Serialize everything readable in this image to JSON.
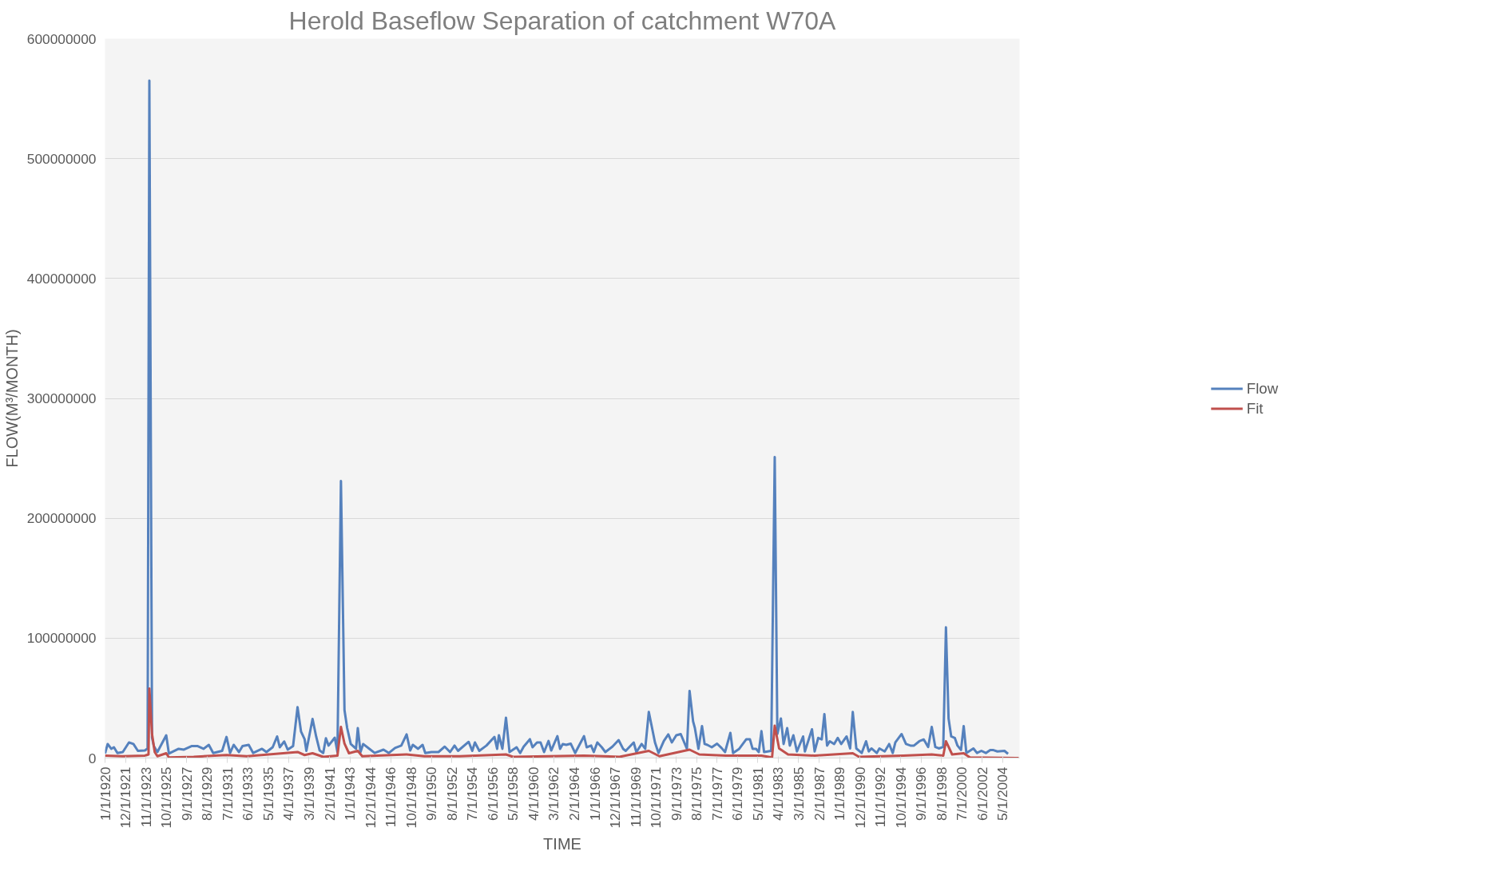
{
  "chart_data": {
    "type": "line",
    "title": "Herold Baseflow Separation of catchment W70A",
    "xlabel": "TIME",
    "ylabel": "FLOW(M³/MONTH)",
    "xlim": [
      "1920-01",
      "2005-12"
    ],
    "ylim": [
      0,
      600000000
    ],
    "yticks": [
      0,
      100000000,
      200000000,
      300000000,
      400000000,
      500000000,
      600000000
    ],
    "xticks": [
      {
        "value": "1920-01-01",
        "label": "1/1/1920"
      },
      {
        "value": "1921-12-01",
        "label": "12/1/1921"
      },
      {
        "value": "1923-11-01",
        "label": "11/1/1923"
      },
      {
        "value": "1925-10-01",
        "label": "10/1/1925"
      },
      {
        "value": "1927-09-01",
        "label": "9/1/1927"
      },
      {
        "value": "1929-08-01",
        "label": "8/1/1929"
      },
      {
        "value": "1931-07-01",
        "label": "7/1/1931"
      },
      {
        "value": "1933-06-01",
        "label": "6/1/1933"
      },
      {
        "value": "1935-05-01",
        "label": "5/1/1935"
      },
      {
        "value": "1937-04-01",
        "label": "4/1/1937"
      },
      {
        "value": "1939-03-01",
        "label": "3/1/1939"
      },
      {
        "value": "1941-02-01",
        "label": "2/1/1941"
      },
      {
        "value": "1943-01-01",
        "label": "1/1/1943"
      },
      {
        "value": "1944-12-01",
        "label": "12/1/1944"
      },
      {
        "value": "1946-11-01",
        "label": "11/1/1946"
      },
      {
        "value": "1948-10-01",
        "label": "10/1/1948"
      },
      {
        "value": "1950-09-01",
        "label": "9/1/1950"
      },
      {
        "value": "1952-08-01",
        "label": "8/1/1952"
      },
      {
        "value": "1954-07-01",
        "label": "7/1/1954"
      },
      {
        "value": "1956-06-01",
        "label": "6/1/1956"
      },
      {
        "value": "1958-05-01",
        "label": "5/1/1958"
      },
      {
        "value": "1960-04-01",
        "label": "4/1/1960"
      },
      {
        "value": "1962-03-01",
        "label": "3/1/1962"
      },
      {
        "value": "1964-02-01",
        "label": "2/1/1964"
      },
      {
        "value": "1966-01-01",
        "label": "1/1/1966"
      },
      {
        "value": "1967-12-01",
        "label": "12/1/1967"
      },
      {
        "value": "1969-11-01",
        "label": "11/1/1969"
      },
      {
        "value": "1971-10-01",
        "label": "10/1/1971"
      },
      {
        "value": "1973-09-01",
        "label": "9/1/1973"
      },
      {
        "value": "1975-08-01",
        "label": "8/1/1975"
      },
      {
        "value": "1977-07-01",
        "label": "7/1/1977"
      },
      {
        "value": "1979-06-01",
        "label": "6/1/1979"
      },
      {
        "value": "1981-05-01",
        "label": "5/1/1981"
      },
      {
        "value": "1983-04-01",
        "label": "4/1/1983"
      },
      {
        "value": "1985-03-01",
        "label": "3/1/1985"
      },
      {
        "value": "1987-02-01",
        "label": "2/1/1987"
      },
      {
        "value": "1989-01-01",
        "label": "1/1/1989"
      },
      {
        "value": "1990-12-01",
        "label": "12/1/1990"
      },
      {
        "value": "1992-11-01",
        "label": "11/1/1992"
      },
      {
        "value": "1994-10-01",
        "label": "10/1/1994"
      },
      {
        "value": "1996-09-01",
        "label": "9/1/1996"
      },
      {
        "value": "1998-08-01",
        "label": "8/1/1998"
      },
      {
        "value": "2000-07-01",
        "label": "7/1/2000"
      },
      {
        "value": "2002-06-01",
        "label": "6/1/2002"
      },
      {
        "value": "2004-05-01",
        "label": "5/1/2004"
      }
    ],
    "grid": "y",
    "legend": "right",
    "series": [
      {
        "name": "Flow",
        "color": "#5581bd",
        "x": [
          "1920-01",
          "1920-04",
          "1920-08",
          "1920-11",
          "1921-03",
          "1921-09",
          "1922-04",
          "1922-09",
          "1923-02",
          "1923-10",
          "1924-01",
          "1924-03",
          "1924-06",
          "1924-08",
          "1924-12",
          "1925-10",
          "1926-01",
          "1926-12",
          "1927-06",
          "1928-03",
          "1928-09",
          "1929-04",
          "1929-10",
          "1930-03",
          "1931-01",
          "1931-06",
          "1931-10",
          "1932-02",
          "1932-08",
          "1932-12",
          "1933-07",
          "1933-12",
          "1934-10",
          "1935-03",
          "1935-10",
          "1936-03",
          "1936-06",
          "1936-11",
          "1937-03",
          "1937-09",
          "1938-02",
          "1938-06",
          "1938-10",
          "1938-12",
          "1939-07",
          "1939-11",
          "1940-03",
          "1940-07",
          "1940-10",
          "1941-01",
          "1941-08",
          "1941-11",
          "1942-03",
          "1942-07",
          "1942-10",
          "1943-02",
          "1943-08",
          "1943-10",
          "1944-01",
          "1944-04",
          "1944-11",
          "1945-05",
          "1946-03",
          "1946-09",
          "1947-04",
          "1947-11",
          "1948-05",
          "1948-09",
          "1948-12",
          "1949-06",
          "1949-11",
          "1950-02",
          "1950-09",
          "1951-05",
          "1951-12",
          "1952-06",
          "1952-11",
          "1953-03",
          "1954-03",
          "1954-07",
          "1954-10",
          "1955-03",
          "1955-11",
          "1956-08",
          "1956-11",
          "1957-01",
          "1957-05",
          "1957-09",
          "1958-01",
          "1958-09",
          "1959-01",
          "1959-05",
          "1959-12",
          "1960-03",
          "1960-08",
          "1960-12",
          "1961-04",
          "1961-09",
          "1961-12",
          "1962-07",
          "1962-10",
          "1963-01",
          "1963-05",
          "1963-10",
          "1964-03",
          "1965-01",
          "1965-04",
          "1965-09",
          "1965-12",
          "1966-04",
          "1966-09",
          "1967-01",
          "1967-09",
          "1968-04",
          "1968-09",
          "1968-12",
          "1969-09",
          "1969-12",
          "1970-06",
          "1970-10",
          "1971-02",
          "1971-05",
          "1971-09",
          "1972-01",
          "1972-07",
          "1972-12",
          "1973-04",
          "1973-09",
          "1974-02",
          "1974-06",
          "1974-09",
          "1974-12",
          "1975-04",
          "1975-06",
          "1975-10",
          "1976-02",
          "1976-05",
          "1976-08",
          "1977-01",
          "1977-07",
          "1977-12",
          "1978-04",
          "1978-10",
          "1979-01",
          "1979-08",
          "1980-04",
          "1980-08",
          "1980-11",
          "1981-03",
          "1981-06",
          "1981-09",
          "1981-12",
          "1982-08",
          "1982-12",
          "1983-03",
          "1983-07",
          "1983-10",
          "1984-02",
          "1984-05",
          "1984-09",
          "1985-01",
          "1985-08",
          "1985-10",
          "1986-06",
          "1986-09",
          "1987-01",
          "1987-05",
          "1987-08",
          "1987-11",
          "1988-02",
          "1988-07",
          "1988-11",
          "1989-03",
          "1989-09",
          "1990-01",
          "1990-04",
          "1990-08",
          "1991-02",
          "1991-07",
          "1991-10",
          "1992-01",
          "1992-07",
          "1992-10",
          "1993-04",
          "1993-09",
          "1994-01",
          "1994-04",
          "1994-11",
          "1995-04",
          "1995-09",
          "1996-01",
          "1996-07",
          "1996-12",
          "1997-05",
          "1997-09",
          "1998-01",
          "1998-05",
          "1998-10",
          "1999-01",
          "1999-04",
          "1999-07",
          "1999-11",
          "2000-02",
          "2000-06",
          "2000-09",
          "2000-12",
          "2001-08",
          "2001-12",
          "2002-05",
          "2002-10",
          "2003-03",
          "2003-06",
          "2003-11",
          "2004-07",
          "2004-11"
        ],
        "values": [
          3700000,
          11700000,
          7700000,
          9000000,
          4200000,
          5000000,
          13000000,
          11700000,
          6000000,
          6300000,
          8000000,
          565000000,
          17000000,
          10000000,
          5000000,
          19000000,
          3700000,
          7700000,
          7000000,
          10000000,
          10000000,
          7700000,
          11000000,
          4200000,
          6000000,
          17600000,
          4200000,
          11000000,
          5000000,
          10000000,
          11000000,
          4200000,
          7700000,
          5000000,
          9000000,
          18000000,
          9000000,
          13800000,
          7000000,
          10000000,
          42500000,
          22000000,
          15700000,
          6000000,
          32600000,
          18000000,
          6300000,
          4200000,
          16500000,
          10400000,
          17000000,
          5000000,
          231000000,
          40000000,
          25000000,
          11700000,
          7700000,
          25000000,
          5000000,
          11700000,
          7700000,
          4200000,
          7000000,
          4200000,
          8400000,
          10400000,
          19700000,
          6300000,
          11000000,
          7700000,
          11000000,
          4200000,
          5000000,
          5000000,
          9500000,
          5000000,
          10400000,
          6000000,
          13500000,
          6000000,
          13000000,
          6000000,
          10400000,
          17600000,
          7700000,
          19000000,
          7700000,
          33700000,
          5000000,
          9000000,
          4200000,
          9500000,
          15700000,
          9000000,
          13000000,
          13000000,
          5000000,
          14300000,
          6300000,
          18300000,
          7700000,
          11700000,
          11000000,
          12000000,
          4200000,
          18300000,
          9000000,
          10400000,
          5000000,
          13000000,
          9000000,
          5000000,
          9500000,
          15000000,
          7700000,
          6000000,
          13000000,
          5000000,
          11700000,
          7700000,
          38500000,
          27800000,
          13000000,
          4200000,
          14300000,
          19700000,
          13000000,
          19000000,
          20000000,
          13000000,
          7700000,
          56000000,
          30500000,
          25000000,
          7700000,
          26700000,
          11700000,
          11000000,
          9000000,
          12000000,
          8400000,
          5000000,
          21000000,
          4200000,
          7700000,
          15700000,
          15700000,
          7700000,
          7700000,
          5000000,
          22400000,
          5000000,
          6000000,
          251000000,
          20000000,
          33000000,
          11700000,
          25000000,
          10400000,
          19000000,
          5500000,
          18000000,
          5500000,
          24000000,
          5500000,
          16800000,
          15500000,
          36700000,
          10400000,
          14000000,
          11700000,
          16800000,
          11700000,
          18000000,
          8000000,
          38400000,
          8000000,
          4200000,
          14000000,
          5500000,
          8000000,
          4200000,
          8000000,
          5500000,
          11700000,
          4200000,
          13000000,
          20000000,
          11700000,
          10400000,
          10400000,
          14000000,
          15500000,
          9200000,
          26000000,
          9200000,
          8000000,
          9200000,
          109000000,
          33000000,
          18000000,
          16800000,
          10400000,
          6700000,
          26700000,
          4200000,
          8000000,
          4200000,
          6000000,
          4200000,
          6700000,
          6700000,
          5500000,
          6000000,
          3500000
        ]
      },
      {
        "name": "Fit",
        "color": "#c0504d",
        "x": [
          "1920-01",
          "1921-09",
          "1923-10",
          "1924-02",
          "1924-03",
          "1924-06",
          "1924-09",
          "1924-12",
          "1925-10",
          "1926-01",
          "1928-05",
          "1931-06",
          "1933-05",
          "1938-02",
          "1938-10",
          "1939-07",
          "1940-07",
          "1941-11",
          "1942-03",
          "1942-07",
          "1942-12",
          "1943-10",
          "1944-03",
          "1948-05",
          "1950-01",
          "1953-05",
          "1957-09",
          "1958-05",
          "1965-01",
          "1968-05",
          "1971-02",
          "1972-02",
          "1974-12",
          "1975-11",
          "1978-05",
          "1981-09",
          "1982-09",
          "1982-12",
          "1983-05",
          "1984-03",
          "1986-09",
          "1990-04",
          "1990-11",
          "1995-01",
          "1997-09",
          "1998-10",
          "1999-01",
          "1999-08",
          "2000-09",
          "2001-04",
          "2005-11"
        ],
        "values": [
          2000000,
          1500000,
          2000000,
          3000000,
          58000000,
          20000000,
          5000000,
          1500000,
          4000000,
          500000,
          1000000,
          2500000,
          1500000,
          5000000,
          2500000,
          4000000,
          1000000,
          2000000,
          26000000,
          12000000,
          4000000,
          6000000,
          1500000,
          3000000,
          1500000,
          1500000,
          3000000,
          1000000,
          2000000,
          1000000,
          6000000,
          1500000,
          7000000,
          3000000,
          2000000,
          2000000,
          500000,
          27000000,
          8000000,
          3000000,
          2000000,
          4000000,
          1000000,
          2000000,
          3000000,
          2000000,
          14000000,
          3000000,
          4000000,
          500000,
          0
        ]
      }
    ]
  }
}
